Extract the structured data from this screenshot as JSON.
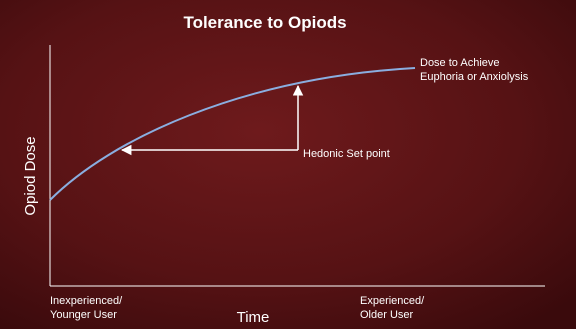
{
  "title": "Tolerance to Opiods",
  "y_axis_label": "Opiod Dose",
  "x_axis_label": "Time",
  "x_start_label": [
    "Inexperienced/",
    "Younger User"
  ],
  "x_end_label": [
    "Experienced/",
    "Older User"
  ],
  "curve_label": [
    "Dose to Achieve",
    "Euphoria or Anxiolysis"
  ],
  "arrow_label": "Hedonic Set point"
}
